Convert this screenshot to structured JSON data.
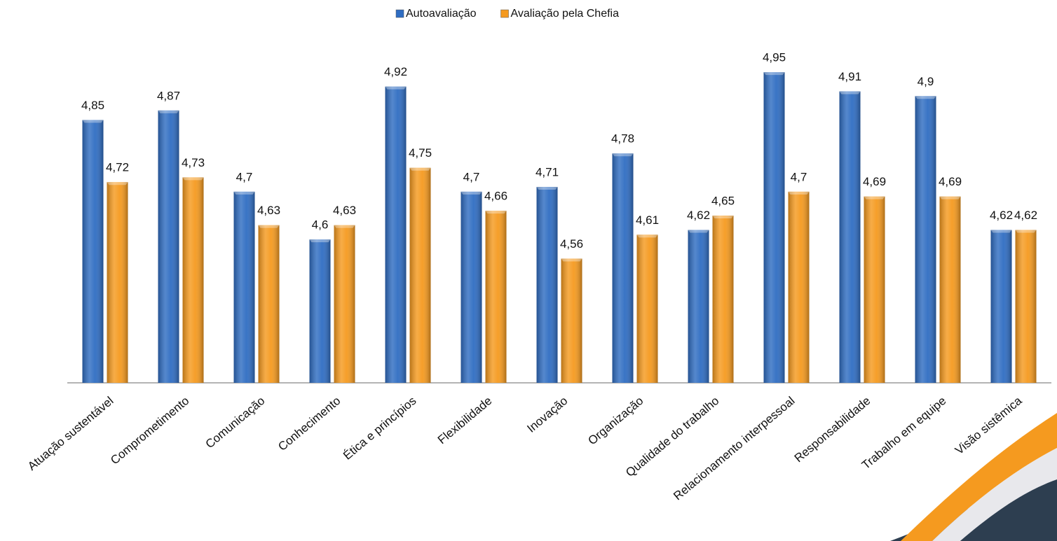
{
  "chart_data": {
    "type": "bar",
    "categories": [
      "Atuação sustentável",
      "Comprometimento",
      "Comunicação",
      "Conhecimento",
      "Ética e princípios",
      "Flexibilidade",
      "Inovação",
      "Organização",
      "Qualidade do trabalho",
      "Relacionamento interpessoal",
      "Responsabilidade",
      "Trabalho em equipe",
      "Visão sistêmica"
    ],
    "series": [
      {
        "name": "Autoavaliação",
        "color": "#2f6dc2",
        "values": [
          4.85,
          4.87,
          4.7,
          4.6,
          4.92,
          4.7,
          4.71,
          4.78,
          4.62,
          4.95,
          4.91,
          4.9,
          4.62
        ],
        "value_labels": [
          "4,85",
          "4,87",
          "4,7",
          "4,6",
          "4,92",
          "4,7",
          "4,71",
          "4,78",
          "4,62",
          "4,95",
          "4,91",
          "4,9",
          "4,62"
        ]
      },
      {
        "name": "Avaliação pela Chefia",
        "color": "#f59a1f",
        "values": [
          4.72,
          4.73,
          4.63,
          4.63,
          4.75,
          4.66,
          4.56,
          4.61,
          4.65,
          4.7,
          4.69,
          4.69,
          4.62
        ],
        "value_labels": [
          "4,72",
          "4,73",
          "4,63",
          "4,63",
          "4,75",
          "4,66",
          "4,56",
          "4,61",
          "4,65",
          "4,7",
          "4,69",
          "4,69",
          "4,62"
        ]
      }
    ],
    "ylim": [
      4.3,
      5.0
    ],
    "legend": "top"
  }
}
